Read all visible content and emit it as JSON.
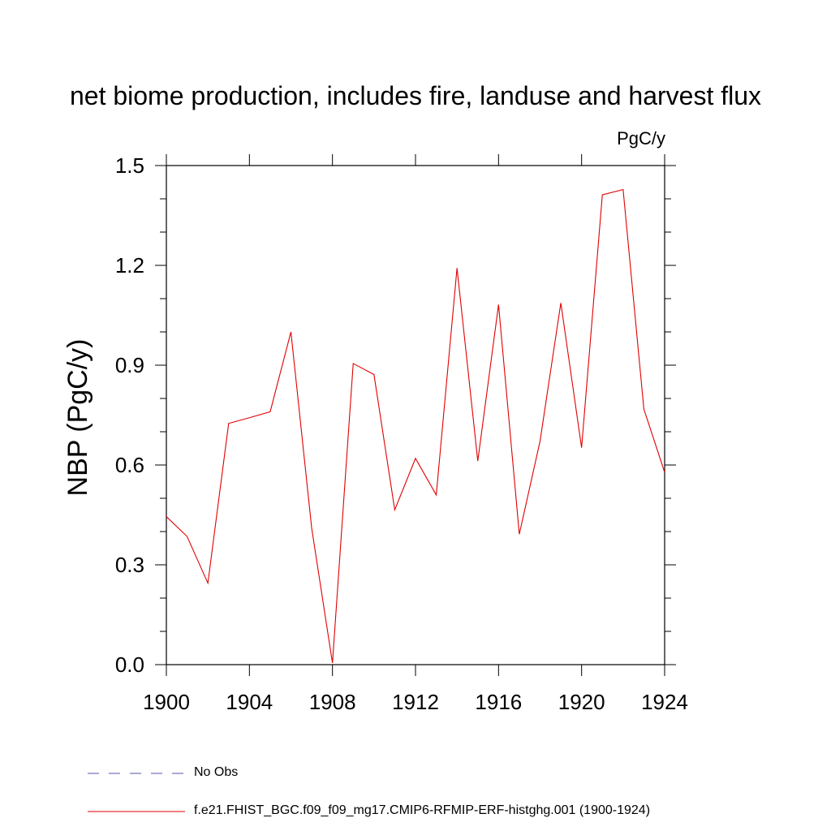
{
  "chart_data": {
    "type": "line",
    "title": "net biome production, includes fire, landuse and harvest flux",
    "units_label": "PgC/y",
    "xlabel": "",
    "ylabel": "NBP  (PgC/y)",
    "xlim": [
      1900,
      1924
    ],
    "ylim": [
      0.0,
      1.5
    ],
    "x_ticks": [
      1900,
      1904,
      1908,
      1912,
      1916,
      1920,
      1924
    ],
    "y_ticks": [
      0.0,
      0.3,
      0.6,
      0.9,
      1.2,
      1.5
    ],
    "y_tick_labels": [
      "0.0",
      "0.3",
      "0.6",
      "0.9",
      "1.2",
      "1.5"
    ],
    "series": [
      {
        "name": "f.e21.FHIST_BGC.f09_f09_mg17.CMIP6-RFMIP-ERF-histghg.001 (1900-1924)",
        "color": "#e00000",
        "x": [
          1900,
          1901,
          1902,
          1903,
          1904,
          1905,
          1906,
          1907,
          1908,
          1909,
          1910,
          1911,
          1912,
          1913,
          1914,
          1915,
          1916,
          1917,
          1918,
          1919,
          1920,
          1921,
          1922,
          1923,
          1924
        ],
        "values": [
          0.445,
          0.385,
          0.245,
          0.725,
          0.742,
          0.76,
          1.0,
          0.41,
          0.005,
          0.905,
          0.872,
          0.465,
          0.62,
          0.51,
          1.192,
          0.612,
          1.082,
          0.392,
          0.672,
          1.087,
          0.652,
          1.412,
          1.428,
          0.768,
          0.578
        ]
      }
    ],
    "legend": [
      {
        "label": "No Obs",
        "style": "dashed",
        "color": "#5555aa"
      },
      {
        "label": "f.e21.FHIST_BGC.f09_f09_mg17.CMIP6-RFMIP-ERF-histghg.001 (1900-1924)",
        "style": "solid",
        "color": "#e00000"
      }
    ]
  }
}
